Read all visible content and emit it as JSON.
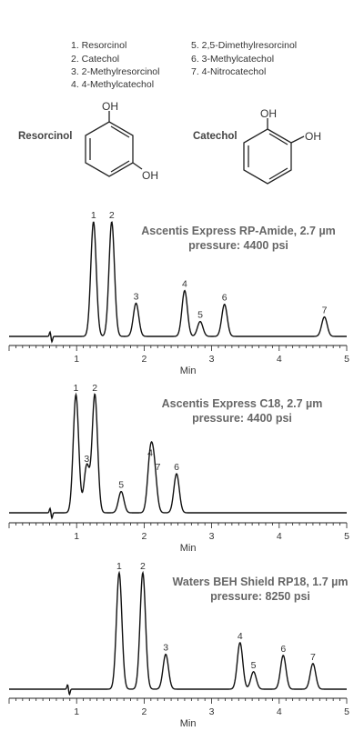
{
  "legend": {
    "col1": [
      "1. Resorcinol",
      "2. Catechol",
      "3. 2-Methylresorcinol",
      "4. 4-Methylcatechol"
    ],
    "col2": [
      "5. 2,5-Dimethylresorcinol",
      "6. 3-Methylcatechol",
      "7. 4-Nitrocatechol"
    ]
  },
  "structures": {
    "resorcinol_label": "Resorcinol",
    "catechol_label": "Catechol",
    "oh": "OH"
  },
  "colors": {
    "trace": "#111111",
    "title": "#666666",
    "text": "#333333"
  },
  "chart_data": [
    {
      "type": "line",
      "title": "Ascentis Express RP-Amide, 2.7 µm",
      "subtitle": "pressure: 4400 psi",
      "xlabel": "Min",
      "xlim": [
        0,
        5
      ],
      "xticks": [
        1,
        2,
        3,
        4,
        5
      ],
      "peaks": [
        {
          "label": "1",
          "rt": 1.25,
          "height": 100
        },
        {
          "label": "2",
          "rt": 1.52,
          "height": 100
        },
        {
          "label": "3",
          "rt": 1.88,
          "height": 29
        },
        {
          "label": "4",
          "rt": 2.6,
          "height": 40
        },
        {
          "label": "5",
          "rt": 2.83,
          "height": 13
        },
        {
          "label": "6",
          "rt": 3.19,
          "height": 28
        },
        {
          "label": "7",
          "rt": 4.67,
          "height": 17
        }
      ]
    },
    {
      "type": "line",
      "title": "Ascentis Express C18, 2.7 µm",
      "subtitle": "pressure: 4400 psi",
      "xlabel": "Min",
      "xlim": [
        0,
        5
      ],
      "xticks": [
        1,
        2,
        3,
        4,
        5
      ],
      "peaks": [
        {
          "label": "1",
          "rt": 0.99,
          "height": 100
        },
        {
          "label": "3",
          "rt": 1.15,
          "height": 40
        },
        {
          "label": "2",
          "rt": 1.27,
          "height": 100
        },
        {
          "label": "5",
          "rt": 1.66,
          "height": 18
        },
        {
          "label": "4",
          "rt": 2.09,
          "height": 45
        },
        {
          "label": "7",
          "rt": 2.15,
          "height": 33
        },
        {
          "label": "6",
          "rt": 2.48,
          "height": 33
        }
      ]
    },
    {
      "type": "line",
      "title": "Waters BEH Shield RP18, 1.7 µm",
      "subtitle": "pressure: 8250 psi",
      "xlabel": "Min",
      "xlim": [
        0,
        5
      ],
      "xticks": [
        1,
        2,
        3,
        4,
        5
      ],
      "peaks": [
        {
          "label": "1",
          "rt": 1.63,
          "height": 100
        },
        {
          "label": "2",
          "rt": 1.98,
          "height": 100
        },
        {
          "label": "3",
          "rt": 2.32,
          "height": 30
        },
        {
          "label": "4",
          "rt": 3.42,
          "height": 40
        },
        {
          "label": "5",
          "rt": 3.62,
          "height": 15
        },
        {
          "label": "6",
          "rt": 4.06,
          "height": 29
        },
        {
          "label": "7",
          "rt": 4.5,
          "height": 22
        }
      ]
    }
  ]
}
